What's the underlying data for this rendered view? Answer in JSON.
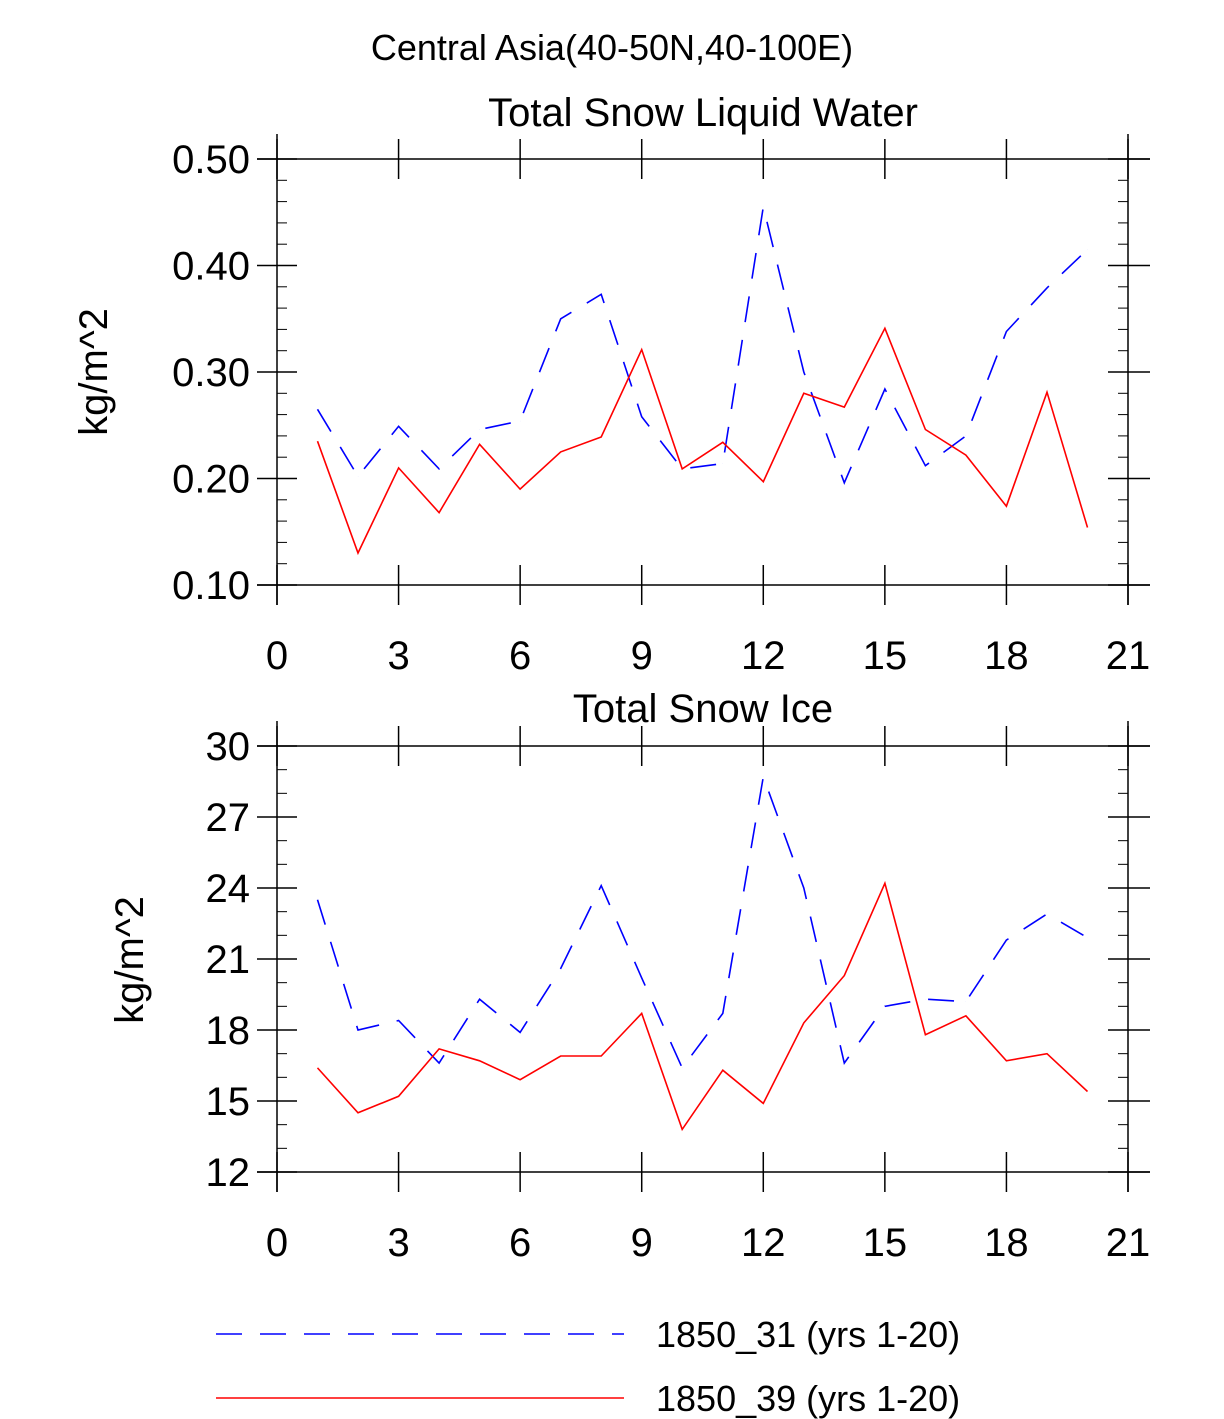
{
  "figure_title": "Central Asia(40-50N,40-100E)",
  "legend": [
    {
      "label": "1850_31 (yrs 1-20)",
      "color": "#0000ff",
      "style": "dashed"
    },
    {
      "label": "1850_39 (yrs 1-20)",
      "color": "#ff0000",
      "style": "solid"
    }
  ],
  "chart_data": [
    {
      "type": "line",
      "title": "Total Snow Liquid Water",
      "xlabel": "",
      "ylabel": "kg/m^2",
      "xlim": [
        0,
        21
      ],
      "ylim": [
        0.1,
        0.5
      ],
      "xticks": [
        "0",
        "3",
        "6",
        "9",
        "12",
        "15",
        "18",
        "21"
      ],
      "yticks": [
        "0.10",
        "0.20",
        "0.30",
        "0.40",
        "0.50"
      ],
      "x": [
        1,
        2,
        3,
        4,
        5,
        6,
        7,
        8,
        9,
        10,
        11,
        12,
        13,
        14,
        15,
        16,
        17,
        18,
        19,
        20
      ],
      "series": [
        {
          "name": "1850_31 (yrs 1-20)",
          "color": "#0000ff",
          "style": "dashed",
          "values": [
            0.265,
            0.202,
            0.249,
            0.209,
            0.246,
            0.254,
            0.35,
            0.373,
            0.258,
            0.209,
            0.214,
            0.455,
            0.3,
            0.196,
            0.284,
            0.212,
            0.24,
            0.338,
            0.379,
            0.415
          ]
        },
        {
          "name": "1850_39 (yrs 1-20)",
          "color": "#ff0000",
          "style": "solid",
          "values": [
            0.235,
            0.13,
            0.21,
            0.168,
            0.232,
            0.19,
            0.225,
            0.239,
            0.321,
            0.209,
            0.234,
            0.197,
            0.28,
            0.267,
            0.341,
            0.246,
            0.222,
            0.174,
            0.281,
            0.154
          ]
        }
      ]
    },
    {
      "type": "line",
      "title": "Total Snow Ice",
      "xlabel": "",
      "ylabel": "kg/m^2",
      "xlim": [
        0,
        21
      ],
      "ylim": [
        12,
        30
      ],
      "xticks": [
        "0",
        "3",
        "6",
        "9",
        "12",
        "15",
        "18",
        "21"
      ],
      "yticks": [
        "12",
        "15",
        "18",
        "21",
        "24",
        "27",
        "30"
      ],
      "x": [
        1,
        2,
        3,
        4,
        5,
        6,
        7,
        8,
        9,
        10,
        11,
        12,
        13,
        14,
        15,
        16,
        17,
        18,
        19,
        20
      ],
      "series": [
        {
          "name": "1850_31 (yrs 1-20)",
          "color": "#0000ff",
          "style": "dashed",
          "values": [
            23.5,
            18.0,
            18.4,
            16.6,
            19.3,
            17.9,
            20.6,
            24.1,
            20.2,
            16.4,
            18.7,
            28.7,
            24.0,
            16.6,
            19.0,
            19.3,
            19.2,
            21.8,
            22.9,
            21.9
          ]
        },
        {
          "name": "1850_39 (yrs 1-20)",
          "color": "#ff0000",
          "style": "solid",
          "values": [
            16.4,
            14.5,
            15.2,
            17.2,
            16.7,
            15.9,
            16.9,
            16.9,
            18.7,
            13.8,
            16.3,
            14.9,
            18.3,
            20.3,
            24.2,
            17.8,
            18.6,
            16.7,
            17.0,
            15.4
          ]
        }
      ]
    }
  ]
}
